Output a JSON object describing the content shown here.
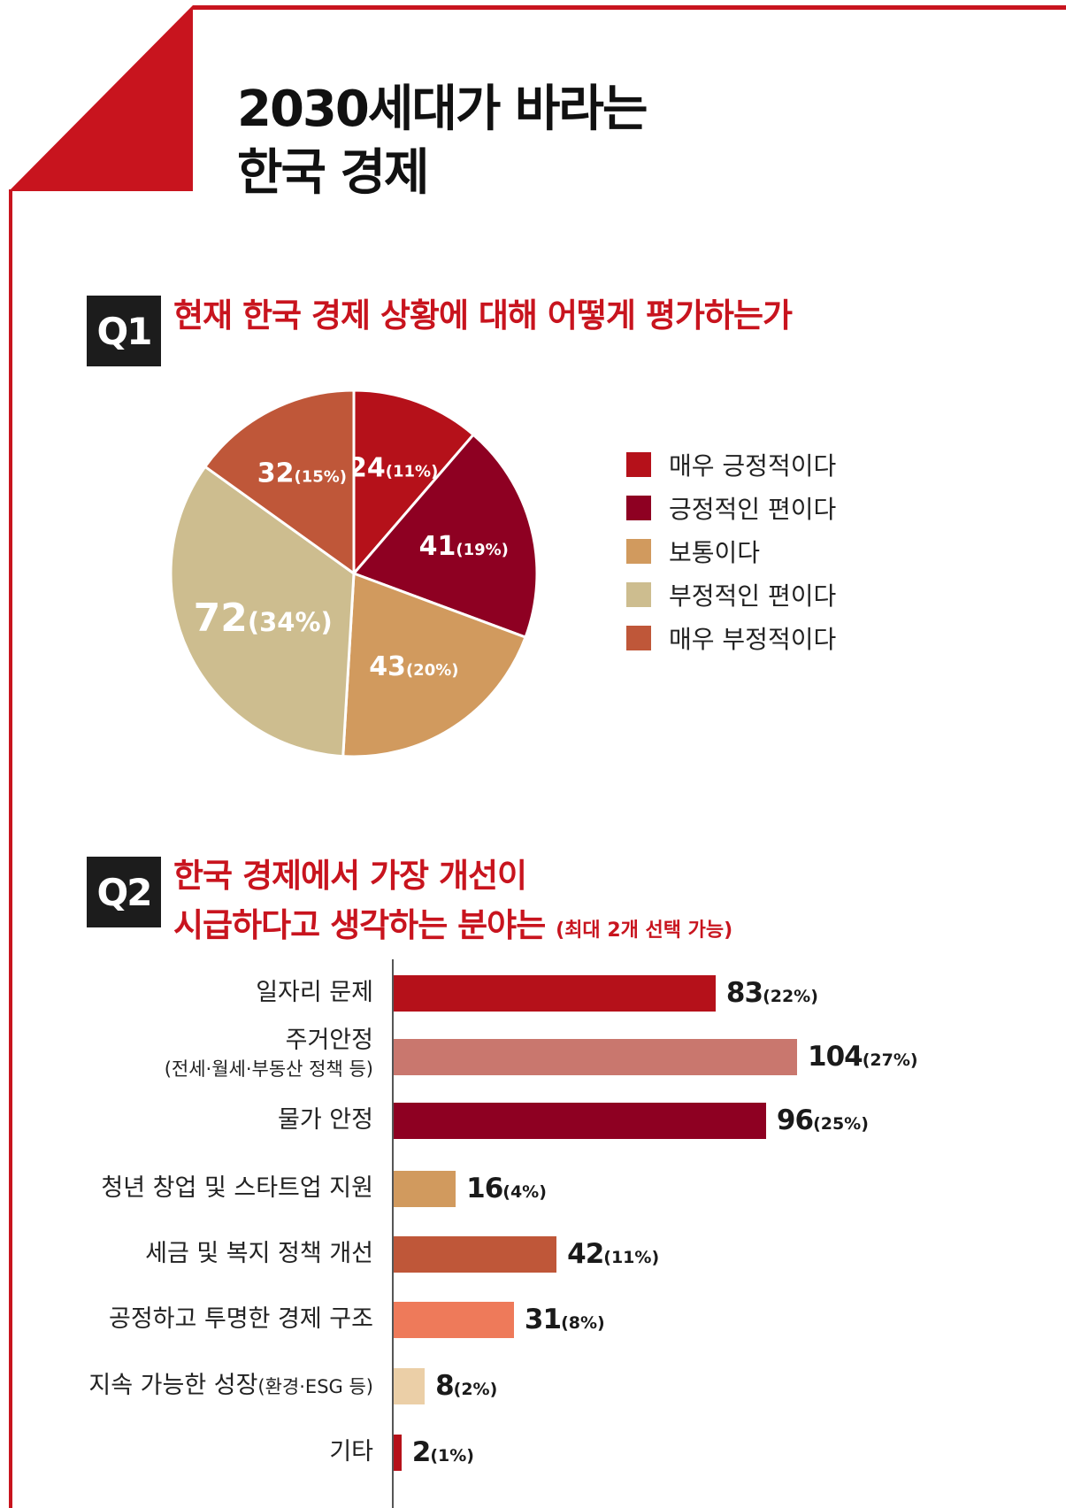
{
  "header": {
    "title_line1": "2030세대가 바라는",
    "title_line2": "한국 경제"
  },
  "q1": {
    "badge": "Q1",
    "question": "현재 한국 경제 상황에 대해 어떻게 평가하는가"
  },
  "q2": {
    "badge": "Q2",
    "question_line1": "한국 경제에서 가장 개선이",
    "question_line2": "시급하다고 생각하는 분야는",
    "note": "(최대 2개 선택 가능)"
  },
  "chart_data": [
    {
      "type": "pie",
      "title": "현재 한국 경제 상황에 대해 어떻게 평가하는가",
      "legend_position": "right",
      "slices": [
        {
          "label": "매우 긍정적이다",
          "value": 24,
          "percent": "11%",
          "display_value": "24",
          "display_pct": "(11%)",
          "color": "#b5111a"
        },
        {
          "label": "긍정적인 편이다",
          "value": 41,
          "percent": "19%",
          "display_value": "41",
          "display_pct": "(19%)",
          "color": "#8e0022"
        },
        {
          "label": "보통이다",
          "value": 43,
          "percent": "20%",
          "display_value": "43",
          "display_pct": "(20%)",
          "color": "#d19a5e"
        },
        {
          "label": "부정적인 편이다",
          "value": 72,
          "percent": "34%",
          "display_value": "72",
          "display_pct": "(34%)",
          "color": "#cdbd8f"
        },
        {
          "label": "매우 부정적이다",
          "value": 32,
          "percent": "15%",
          "display_value": "32",
          "display_pct": "(15%)",
          "color": "#bf5739"
        }
      ]
    },
    {
      "type": "bar",
      "orientation": "horizontal",
      "title": "한국 경제에서 가장 개선이 시급하다고 생각하는 분야는",
      "xlim": [
        0,
        104
      ],
      "bars": [
        {
          "label": "일자리 문제",
          "sublabel": "",
          "value": 83,
          "display_value": "83",
          "display_pct": "(22%)",
          "color": "#b5111a"
        },
        {
          "label": "주거안정",
          "sublabel": "(전세·월세·부동산 정책 등)",
          "value": 104,
          "display_value": "104",
          "display_pct": "(27%)",
          "color": "#c9776e"
        },
        {
          "label": "물가 안정",
          "sublabel": "",
          "value": 96,
          "display_value": "96",
          "display_pct": "(25%)",
          "color": "#8e0022"
        },
        {
          "label": "청년 창업 및 스타트업 지원",
          "sublabel": "",
          "value": 16,
          "display_value": "16",
          "display_pct": "(4%)",
          "color": "#d19a5e"
        },
        {
          "label": "세금 및 복지 정책 개선",
          "sublabel": "",
          "value": 42,
          "display_value": "42",
          "display_pct": "(11%)",
          "color": "#bf5739"
        },
        {
          "label": "공정하고 투명한 경제 구조",
          "sublabel": "",
          "value": 31,
          "display_value": "31",
          "display_pct": "(8%)",
          "color": "#ee7a5a"
        },
        {
          "label": "지속 가능한 성장",
          "sublabel": "(환경·ESG 등)",
          "value": 8,
          "display_value": "8",
          "display_pct": "(2%)",
          "color": "#ebcfa7"
        },
        {
          "label": "기타",
          "sublabel": "",
          "value": 2,
          "display_value": "2",
          "display_pct": "(1%)",
          "color": "#b5111a"
        }
      ]
    }
  ]
}
